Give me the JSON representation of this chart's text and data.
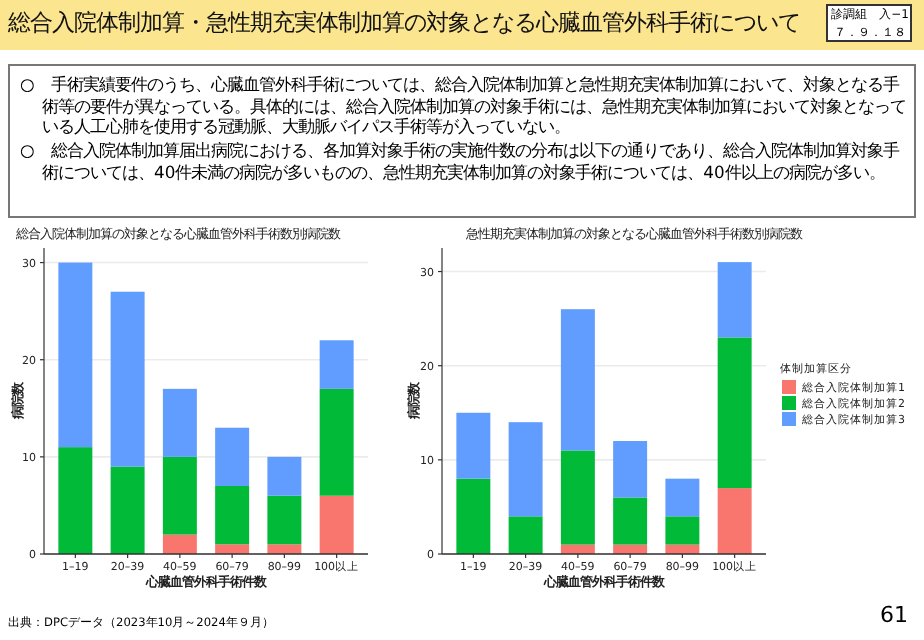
{
  "chart_data": [
    {
      "type": "bar",
      "stacked": true,
      "title": "総合入院体制加算の対象となる心臓血管外科手術数別病院数",
      "xlabel": "心臓血管外科手術件数",
      "ylabel": "病院数",
      "categories": [
        "1–19",
        "20–39",
        "40–59",
        "60–79",
        "80–99",
        "100以上"
      ],
      "series": [
        {
          "color": "#f8766d",
          "values": [
            0,
            0,
            2,
            1,
            1,
            6
          ]
        },
        {
          "color": "#00ba38",
          "values": [
            11,
            9,
            8,
            6,
            5,
            11
          ]
        },
        {
          "color": "#619cff",
          "values": [
            19,
            18,
            7,
            6,
            4,
            5
          ]
        }
      ],
      "ylim": [
        0,
        31.5
      ],
      "yticks": [
        0,
        10,
        20,
        30
      ],
      "grid": "y",
      "legend": false,
      "annotations": [
        "総合入院体制加算・急性期充実体制加算の対象となる心臓血管外科手術について",
        "診調組　入−1",
        "７．９．１８",
        "○　手術実績要件のうち、心臓血管外科手術については、総合入院体制加算と急性期充実体制加算において、対象となる手術等の要件が異なっている。具体的には、総合入院体制加算の対象手術には、急性期充実体制加算において対象となっている人工心肺を使用する冠動脈、大動脈バイパス手術等が入っていない。",
        "○　総合入院体制加算届出病院における、各加算対象手術の実施件数の分布は以下の通りであり、総合入院体制加算対象手術については、40件未満の病院が多いものの、急性期充実体制加算の対象手術については、40件以上の病院が多い。",
        "出典：DPCデータ（2023年10月～2024年９月）",
        "61"
      ]
    },
    {
      "type": "bar",
      "stacked": true,
      "title": "急性期充実体制加算の対象となる心臓血管外科手術数別病院数",
      "xlabel": "心臓血管外科手術件数",
      "ylabel": "病院数",
      "categories": [
        "1–19",
        "20–39",
        "40–59",
        "60–79",
        "80–99",
        "100以上"
      ],
      "series": [
        {
          "name": "総合入院体制加算1",
          "color": "#f8766d",
          "values": [
            0,
            0,
            1,
            1,
            1,
            7
          ]
        },
        {
          "name": "総合入院体制加算2",
          "color": "#00ba38",
          "values": [
            8,
            4,
            10,
            5,
            3,
            16
          ]
        },
        {
          "name": "総合入院体制加算3",
          "color": "#619cff",
          "values": [
            7,
            10,
            15,
            6,
            4,
            8
          ]
        }
      ],
      "ylim": [
        0,
        32.5
      ],
      "yticks": [
        0,
        10,
        20,
        30
      ],
      "grid": "y",
      "legend": "right",
      "legend_title": "体制加算区分"
    }
  ]
}
